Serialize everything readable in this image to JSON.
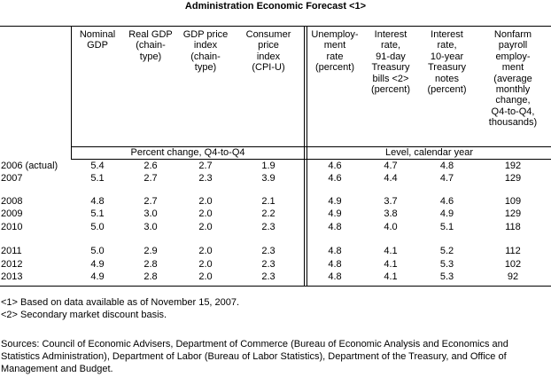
{
  "title": "Administration Economic Forecast <1>",
  "columns": [
    "Nominal\nGDP",
    "Real GDP\n(chain-\ntype)",
    "GDP price\nindex\n(chain-\ntype)",
    "Consumer\nprice\nindex\n(CPI-U)",
    "Unemploy-\nment\nrate\n(percent)",
    "Interest\nrate,\n91-day\nTreasury\nbills <2>\n(percent)",
    "Interest\nrate,\n10-year\nTreasury\nnotes\n(percent)",
    "Nonfarm\npayroll\nemploy-\nment\n(average\nmonthly\nchange,\nQ4-to-Q4,\nthousands)"
  ],
  "subheaders": {
    "left": "Percent change, Q4-to-Q4",
    "right": "Level, calendar year"
  },
  "rows": [
    {
      "label": "2006 (actual)",
      "values": [
        "5.4",
        "2.6",
        "2.7",
        "1.9",
        "4.6",
        "4.7",
        "4.8",
        "192"
      ]
    },
    {
      "label": "2007",
      "values": [
        "5.1",
        "2.7",
        "2.3",
        "3.9",
        "4.6",
        "4.4",
        "4.7",
        "129"
      ]
    },
    {
      "label": "2008",
      "values": [
        "4.8",
        "2.7",
        "2.0",
        "2.1",
        "4.9",
        "3.7",
        "4.6",
        "109"
      ]
    },
    {
      "label": "2009",
      "values": [
        "5.1",
        "3.0",
        "2.0",
        "2.2",
        "4.9",
        "3.8",
        "4.9",
        "129"
      ]
    },
    {
      "label": "2010",
      "values": [
        "5.0",
        "3.0",
        "2.0",
        "2.3",
        "4.8",
        "4.0",
        "5.1",
        "118"
      ]
    },
    {
      "label": "2011",
      "values": [
        "5.0",
        "2.9",
        "2.0",
        "2.3",
        "4.8",
        "4.1",
        "5.2",
        "112"
      ]
    },
    {
      "label": "2012",
      "values": [
        "4.9",
        "2.8",
        "2.0",
        "2.3",
        "4.8",
        "4.1",
        "5.3",
        "102"
      ]
    },
    {
      "label": "2013",
      "values": [
        "4.9",
        "2.8",
        "2.0",
        "2.3",
        "4.8",
        "4.1",
        "5.3",
        "92"
      ]
    }
  ],
  "notes": [
    "<1> Based on data available as of November 15, 2007.",
    "<2> Secondary market discount basis."
  ],
  "sources": "Sources: Council of Economic Advisers, Department of Commerce (Bureau of Economic Analysis and Economics and Statistics Administration), Department of Labor (Bureau of Labor Statistics), Department of the Treasury, and Office of Management and Budget."
}
